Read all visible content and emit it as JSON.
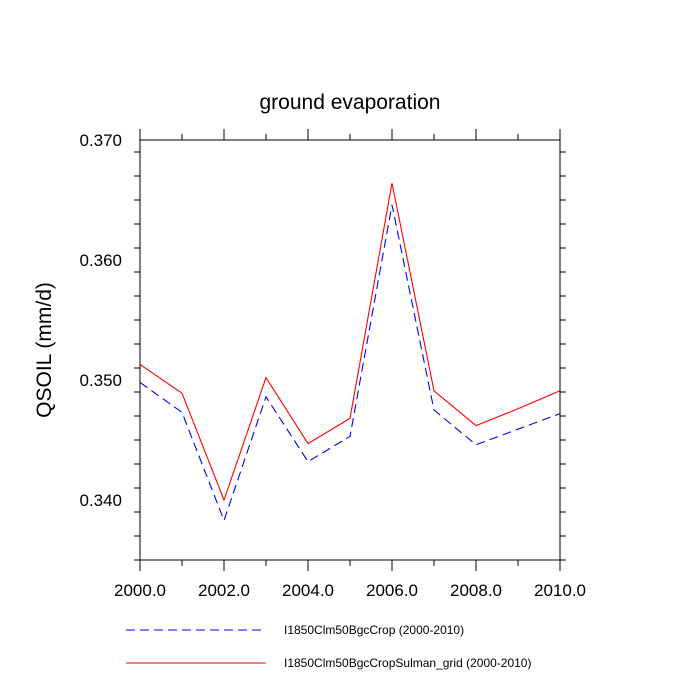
{
  "chart_data": {
    "type": "line",
    "title": "ground evaporation",
    "ylabel": "QSOIL  (mm/d)",
    "xlabel": "",
    "xlim": [
      2000,
      2010
    ],
    "ylim": [
      0.335,
      0.37
    ],
    "grid": false,
    "legend_position": "bottom",
    "x_ticks": [
      2000,
      2002,
      2004,
      2006,
      2008,
      2010
    ],
    "x_tick_labels": [
      "2000.0",
      "2002.0",
      "2004.0",
      "2006.0",
      "2008.0",
      "2010.0"
    ],
    "y_ticks": [
      0.34,
      0.35,
      0.36,
      0.37
    ],
    "y_tick_labels": [
      "0.340",
      "0.350",
      "0.360",
      "0.370"
    ],
    "x": [
      2000,
      2001,
      2002,
      2003,
      2004,
      2005,
      2006,
      2007,
      2008,
      2009,
      2010
    ],
    "series": [
      {
        "name": "I1850Clm50BgcCrop (2000-2010)",
        "color": "#0000ff",
        "dash": "dashed",
        "values": [
          0.3498,
          0.3473,
          0.3383,
          0.3486,
          0.3432,
          0.3453,
          0.3646,
          0.3475,
          0.3446,
          0.3459,
          0.3472
        ]
      },
      {
        "name": "I1850Clm50BgcCropSulman_grid (2000-2010)",
        "color": "#ff0000",
        "dash": "solid",
        "values": [
          0.3513,
          0.3489,
          0.34,
          0.3502,
          0.3447,
          0.3468,
          0.3664,
          0.3491,
          0.3462,
          0.3476,
          0.3491
        ]
      }
    ]
  }
}
